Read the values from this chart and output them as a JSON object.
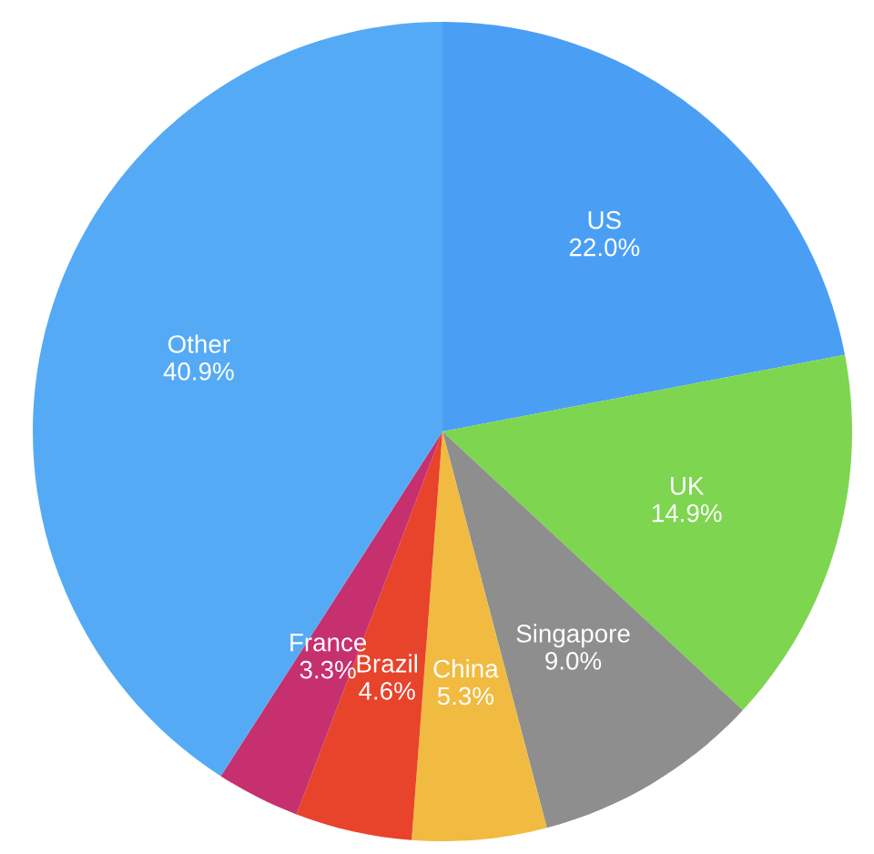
{
  "chart_data": {
    "type": "pie",
    "categories": [
      "US",
      "UK",
      "Singapore",
      "China",
      "Brazil",
      "France",
      "Other"
    ],
    "values": [
      22.0,
      14.9,
      9.0,
      5.3,
      4.6,
      3.3,
      40.9
    ],
    "value_labels": [
      "22.0%",
      "14.9%",
      "9.0%",
      "5.3%",
      "4.6%",
      "3.3%",
      "40.9%"
    ],
    "colors": [
      "#4a9ff5",
      "#7ed550",
      "#8e8e8e",
      "#f0bb40",
      "#e8432b",
      "#c6306f",
      "#55aaf5"
    ],
    "legend": false
  }
}
